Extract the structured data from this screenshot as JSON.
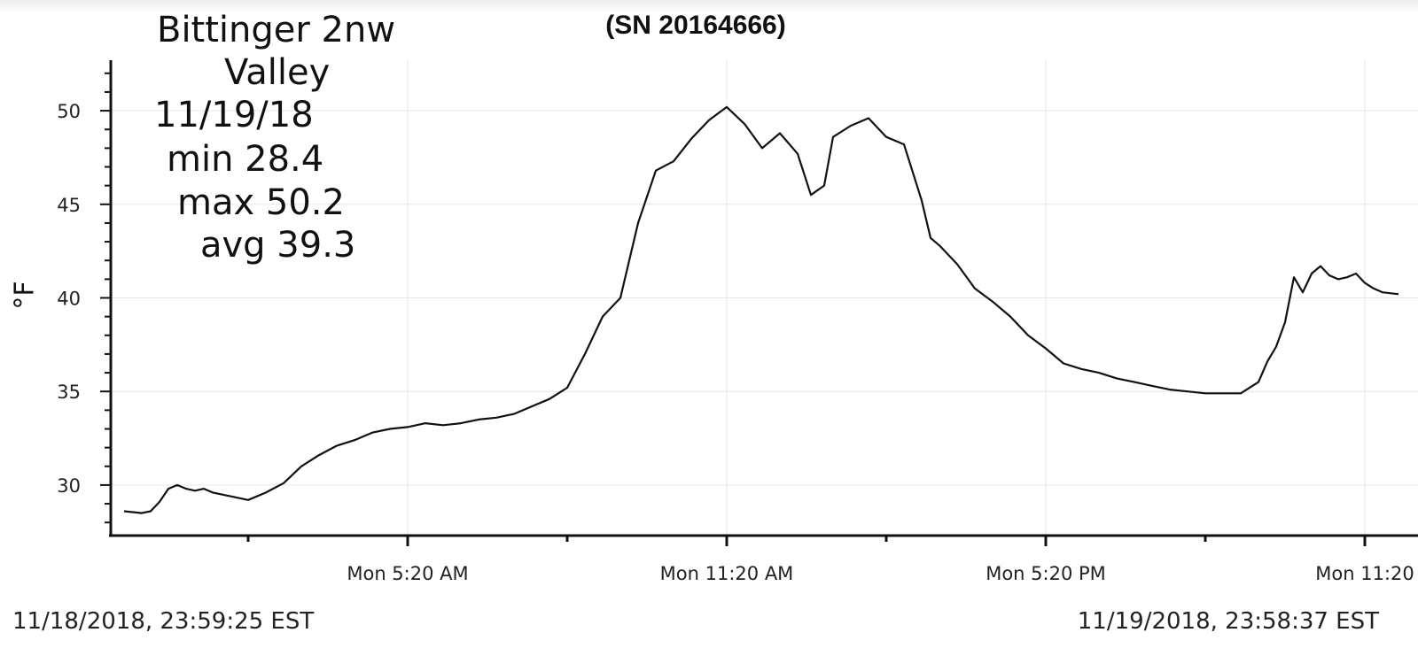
{
  "chart_data": {
    "type": "line",
    "title": "(SN 20164666)",
    "ylabel": "°F",
    "xlabel": "",
    "ylim": [
      27.3,
      52.7
    ],
    "yticks": [
      30,
      35,
      40,
      45,
      50
    ],
    "x_start_label": "11/18/2018, 23:59:25 EST",
    "x_end_label": "11/19/2018, 23:58:37 EST",
    "x_ticks": [
      {
        "time": "05:20",
        "label": "Mon 5:20 AM"
      },
      {
        "time": "11:20",
        "label": "Mon 11:20 AM"
      },
      {
        "time": "17:20",
        "label": "Mon 5:20 PM"
      },
      {
        "time": "23:20",
        "label": "Mon 11:20"
      }
    ],
    "grid": true,
    "annotation": [
      "Bittinger 2nw",
      "Valley",
      "11/19/18",
      "min 28.4",
      "max 50.2",
      "avg 39.3"
    ],
    "series": [
      {
        "x": [
          "00:00",
          "00:20",
          "00:30",
          "00:40",
          "00:50",
          "01:00",
          "01:10",
          "01:20",
          "01:30",
          "01:40",
          "02:00",
          "02:20",
          "02:40",
          "03:00",
          "03:20",
          "03:40",
          "04:00",
          "04:20",
          "04:40",
          "05:00",
          "05:20",
          "05:40",
          "06:00",
          "06:20",
          "06:40",
          "07:00",
          "07:20",
          "07:40",
          "08:00",
          "08:20",
          "08:40",
          "09:00",
          "09:20",
          "09:40",
          "10:00",
          "10:20",
          "10:40",
          "11:00",
          "11:20",
          "11:40",
          "12:00",
          "12:20",
          "12:40",
          "12:55",
          "13:10",
          "13:20",
          "13:40",
          "14:00",
          "14:20",
          "14:40",
          "15:00",
          "15:10",
          "15:20",
          "15:40",
          "16:00",
          "16:20",
          "16:40",
          "17:00",
          "17:20",
          "17:40",
          "18:00",
          "18:20",
          "18:40",
          "19:00",
          "19:20",
          "19:40",
          "20:00",
          "20:20",
          "20:40",
          "21:00",
          "21:20",
          "21:30",
          "21:40",
          "21:50",
          "22:00",
          "22:10",
          "22:20",
          "22:30",
          "22:40",
          "22:50",
          "23:00",
          "23:10",
          "23:20",
          "23:30",
          "23:40",
          "23:58"
        ],
        "y": [
          28.6,
          28.5,
          28.6,
          29.1,
          29.8,
          30.0,
          29.8,
          29.7,
          29.8,
          29.6,
          29.4,
          29.2,
          29.6,
          30.1,
          31.0,
          31.6,
          32.1,
          32.4,
          32.8,
          33.0,
          33.1,
          33.3,
          33.2,
          33.3,
          33.5,
          33.6,
          33.8,
          34.2,
          34.6,
          35.2,
          37.0,
          39.0,
          40.0,
          44.0,
          46.8,
          47.3,
          48.5,
          49.5,
          50.2,
          49.3,
          48.0,
          48.8,
          47.7,
          45.5,
          46.0,
          48.6,
          49.2,
          49.6,
          48.6,
          48.2,
          45.2,
          43.2,
          42.8,
          41.8,
          40.5,
          39.8,
          39.0,
          38.0,
          37.3,
          36.5,
          36.2,
          36.0,
          35.7,
          35.5,
          35.3,
          35.1,
          35.0,
          34.9,
          34.9,
          34.9,
          35.5,
          36.6,
          37.4,
          38.7,
          41.1,
          40.3,
          41.3,
          41.7,
          41.2,
          41.0,
          41.1,
          41.3,
          40.8,
          40.5,
          40.3,
          40.2
        ]
      }
    ]
  }
}
